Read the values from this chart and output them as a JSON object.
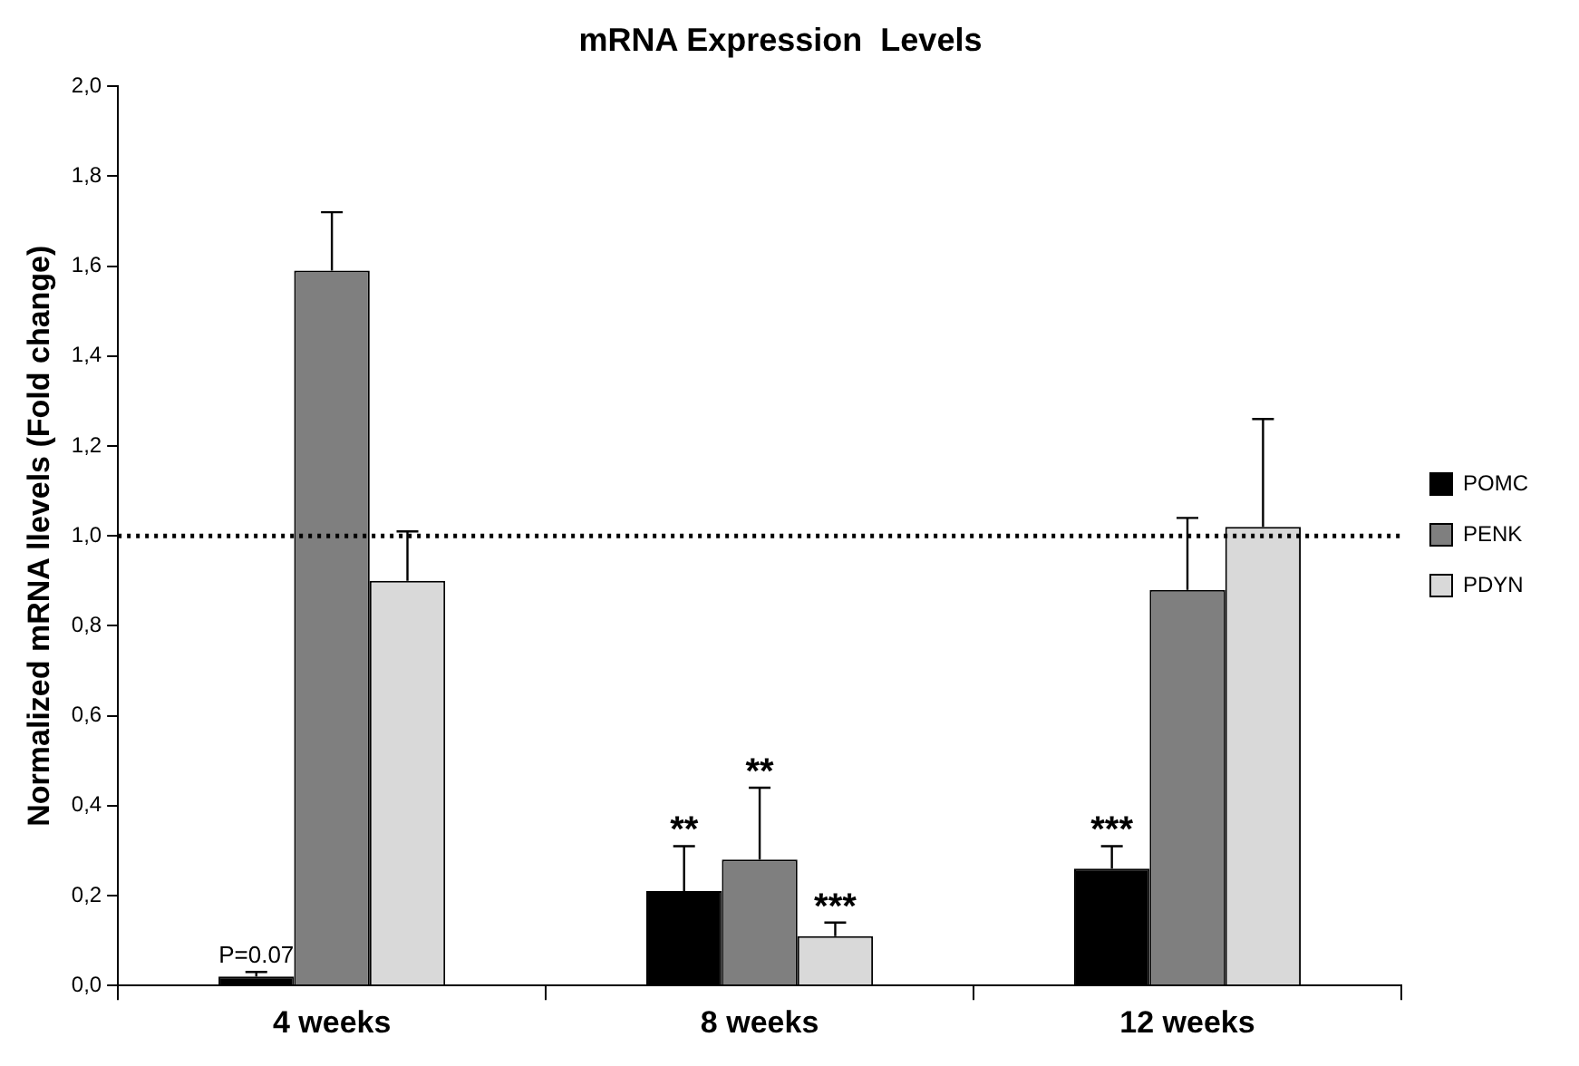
{
  "chart_data": {
    "type": "bar",
    "title": "mRNA Expression  Levels",
    "ylabel": "Normalized mRNA llevels (Fold change)",
    "categories": [
      "4 weeks",
      "8 weeks",
      "12 weeks"
    ],
    "series": [
      {
        "name": "POMC",
        "color": "#000000",
        "values": [
          0.02,
          0.21,
          0.26
        ],
        "errors": [
          0.01,
          0.1,
          0.05
        ]
      },
      {
        "name": "PENK",
        "color": "#7f7f7f",
        "values": [
          1.59,
          0.28,
          0.88
        ],
        "errors": [
          0.13,
          0.16,
          0.16
        ]
      },
      {
        "name": "PDYN",
        "color": "#d9d9d9",
        "values": [
          0.9,
          0.11,
          1.02
        ],
        "errors": [
          0.11,
          0.03,
          0.24
        ]
      }
    ],
    "ylim": [
      0,
      2
    ],
    "yticks": [
      {
        "value": 0,
        "label": "0,0"
      },
      {
        "value": 0.2,
        "label": "0,2"
      },
      {
        "value": 0.4,
        "label": "0,4"
      },
      {
        "value": 0.6,
        "label": "0,6"
      },
      {
        "value": 0.8,
        "label": "0,8"
      },
      {
        "value": 1.0,
        "label": "1,0"
      },
      {
        "value": 1.2,
        "label": "1,2"
      },
      {
        "value": 1.4,
        "label": "1,4"
      },
      {
        "value": 1.6,
        "label": "1,6"
      },
      {
        "value": 1.8,
        "label": "1,8"
      },
      {
        "value": 2.0,
        "label": "2,0"
      }
    ],
    "ref_lines": [
      {
        "axis": "y",
        "value": 1.0,
        "color": "#000000",
        "line_style": "dotted"
      }
    ],
    "annotations": [
      "P=0.07",
      "**",
      "**",
      "***",
      "***"
    ],
    "grid": false,
    "legend": "right"
  }
}
